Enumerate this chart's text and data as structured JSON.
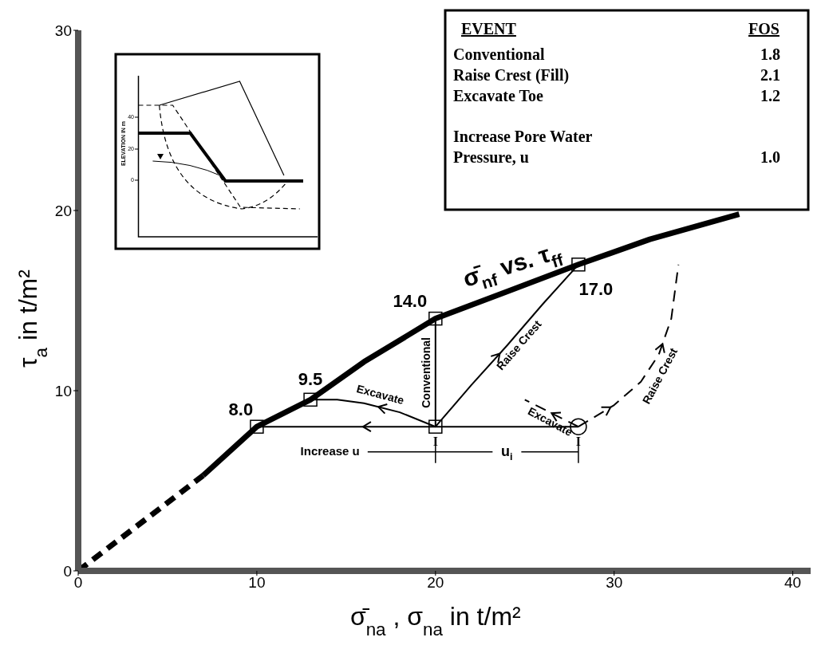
{
  "chart_data": {
    "type": "line",
    "xlabel": "σ̄$_{na}$ , σ$_{na}$ in  t/m²",
    "ylabel": "τ$_{a}$ in  t/m²",
    "xlim": [
      0,
      41
    ],
    "xticks": [
      0,
      10,
      20,
      30,
      40
    ],
    "ylim": [
      0,
      30
    ],
    "yticks": [
      0,
      10,
      20,
      30
    ],
    "series": [
      {
        "color": "#000000",
        "line_style": "dashed",
        "x": [
          0,
          7
        ],
        "values": [
          0,
          5.3
        ]
      },
      {
        "name": "σ̄$_{nf}$ vs. τ$_{ff}$",
        "color": "#000000",
        "line_style": "solid",
        "x": [
          7,
          10,
          13,
          16,
          20,
          24,
          28,
          32,
          37
        ],
        "values": [
          5.3,
          8,
          9.5,
          11.6,
          14,
          15.5,
          17,
          18.4,
          19.8
        ]
      },
      {
        "color": "#000000",
        "line_style": "solid",
        "x": [
          28,
          10
        ],
        "values": [
          8,
          8
        ]
      },
      {
        "name": "Excavate",
        "color": "#000000",
        "line_style": "solid",
        "x": [
          20,
          18,
          16,
          14.5,
          13
        ],
        "values": [
          8,
          8.8,
          9.3,
          9.5,
          9.5
        ]
      },
      {
        "name": "Conventional",
        "color": "#000000",
        "line_style": "solid",
        "x": [
          20,
          20
        ],
        "values": [
          8,
          14
        ]
      },
      {
        "name": "Raise Crest",
        "color": "#000000",
        "line_style": "solid",
        "x": [
          20,
          22,
          24,
          26,
          28
        ],
        "values": [
          8,
          10.3,
          12.5,
          14.8,
          17
        ]
      },
      {
        "name": "Excavate",
        "color": "#000000",
        "line_style": "dashed",
        "x": [
          28,
          25
        ],
        "values": [
          8,
          9.5
        ]
      },
      {
        "name": "Raise Crest",
        "color": "#000000",
        "line_style": "dashed",
        "x": [
          28,
          30,
          31.5,
          32.5,
          33.2,
          33.6
        ],
        "values": [
          8,
          9.2,
          10.5,
          12,
          14,
          17
        ]
      },
      {
        "type": "scatter",
        "marker": "square",
        "color": "#000000",
        "x": [
          10,
          13,
          20,
          28,
          20
        ],
        "values": [
          8,
          9.5,
          14,
          17,
          8
        ],
        "value_labels": [
          "8.0",
          "9.5",
          "14.0",
          "17.0",
          null
        ]
      },
      {
        "type": "scatter",
        "marker": "circle",
        "color": "#000000",
        "x": [
          28
        ],
        "values": [
          8
        ]
      }
    ],
    "annotations": [
      "EVENT",
      "FOS",
      "Conventional",
      "1.8",
      "Raise Crest (Fill)",
      "2.1",
      "Excavate Toe",
      "1.2",
      "Increase Pore Water",
      "Pressure, u",
      "1.0",
      "Increase u",
      "u$_{i}$",
      "ELEVATION IN m",
      "40",
      "20",
      "0",
      {
        "text": "I",
        "x": 20,
        "y": 8
      },
      {
        "text": "I",
        "x": 28,
        "y": 8
      }
    ]
  }
}
